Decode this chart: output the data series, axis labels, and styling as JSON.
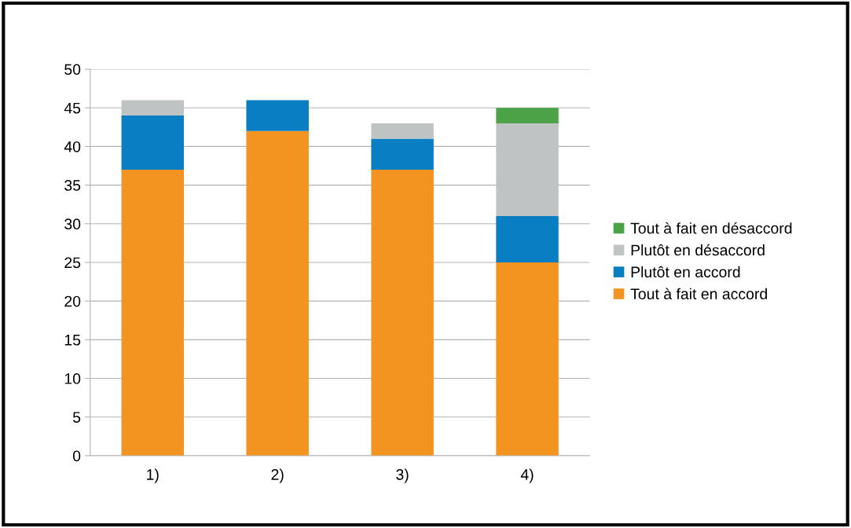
{
  "chart_data": {
    "type": "bar",
    "stacked": true,
    "categories": [
      "1)",
      "2)",
      "3)",
      "4)"
    ],
    "series": [
      {
        "name": "Tout à fait en accord",
        "color": "#f39320",
        "values": [
          37,
          42,
          37,
          25
        ]
      },
      {
        "name": "Plutôt en accord",
        "color": "#0a7ec2",
        "values": [
          7,
          4,
          4,
          6
        ]
      },
      {
        "name": "Plutôt en désaccord",
        "color": "#c0c3c4",
        "values": [
          2,
          0,
          2,
          12
        ]
      },
      {
        "name": "Tout à fait en désaccord",
        "color": "#4ba247",
        "values": [
          0,
          0,
          0,
          2
        ]
      }
    ],
    "ylim": [
      0,
      50
    ],
    "yticks": [
      0,
      5,
      10,
      15,
      20,
      25,
      30,
      35,
      40,
      45,
      50
    ],
    "grid": "y",
    "legend": "right"
  }
}
